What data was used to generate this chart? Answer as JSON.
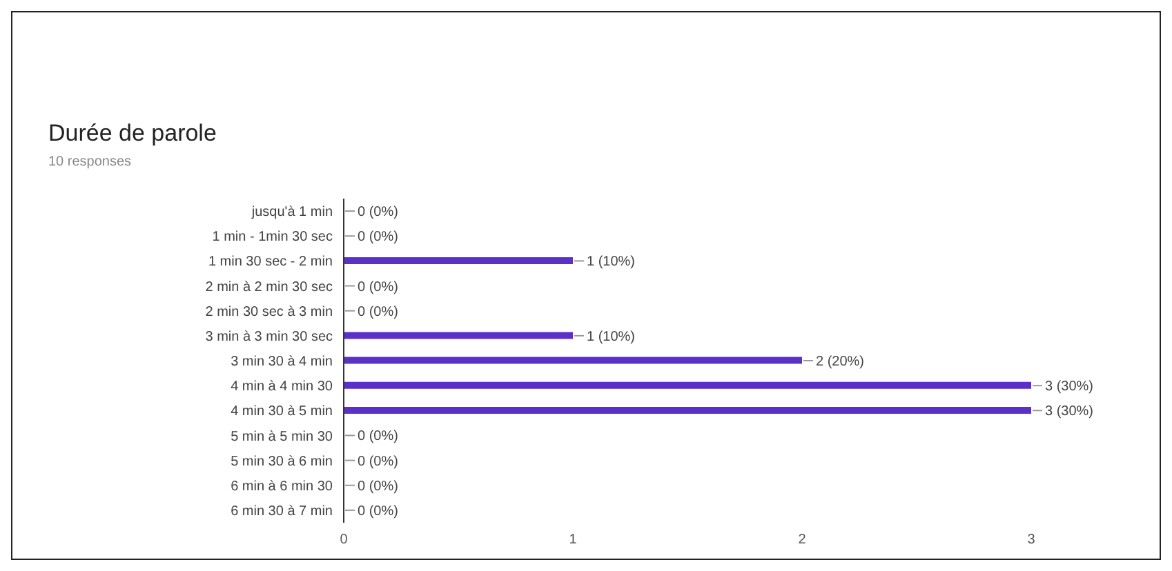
{
  "chart_data": {
    "type": "bar",
    "orientation": "horizontal",
    "title": "Durée de parole",
    "subtitle": "10 responses",
    "categories": [
      "jusqu'à 1 min",
      "1 min - 1min 30 sec",
      "1 min 30 sec - 2 min",
      "2 min à 2 min 30 sec",
      "2 min 30 sec à 3 min",
      "3 min à 3 min 30 sec",
      "3 min 30 à 4 min",
      "4 min à 4 min 30",
      "4 min 30 à 5 min",
      "5 min à 5 min 30",
      "5 min 30 à 6 min",
      "6 min à 6 min 30",
      "6 min 30 à 7 min"
    ],
    "values": [
      0,
      0,
      1,
      0,
      0,
      1,
      2,
      3,
      3,
      0,
      0,
      0,
      0
    ],
    "value_labels": [
      "0 (0%)",
      "0 (0%)",
      "1 (10%)",
      "0 (0%)",
      "0 (0%)",
      "1 (10%)",
      "2 (20%)",
      "3 (30%)",
      "3 (30%)",
      "0 (0%)",
      "0 (0%)",
      "0 (0%)",
      "0 (0%)"
    ],
    "color": "#5b30c8",
    "xlim": [
      0,
      3
    ],
    "xticks": [
      0,
      1,
      2,
      3
    ],
    "grid": false
  }
}
